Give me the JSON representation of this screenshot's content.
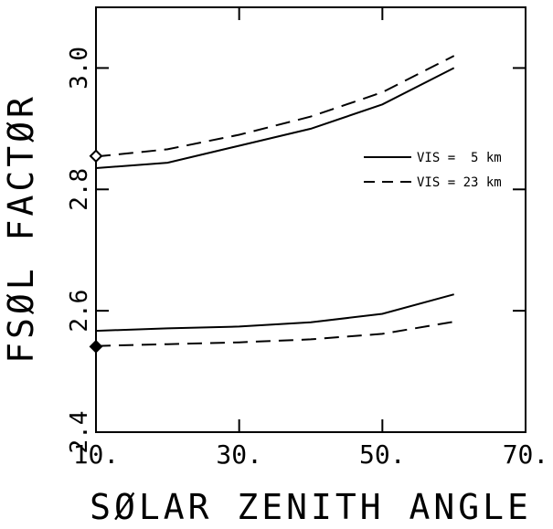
{
  "chart_data": {
    "type": "line",
    "xlabel": "SØLAR ZENITH ANGLE",
    "ylabel": "FSØL FACTØR",
    "xlim": [
      10,
      70
    ],
    "ylim": [
      2.4,
      3.1
    ],
    "x_ticks": [
      10,
      30,
      50,
      70
    ],
    "x_tick_labels": [
      "10.",
      "30.",
      "50.",
      "70."
    ],
    "y_ticks": [
      2.4,
      2.6,
      2.8,
      3.0
    ],
    "y_tick_labels": [
      "2.4",
      "2.6",
      "2.8",
      "3.0"
    ],
    "legend": {
      "placement": "right",
      "entries": [
        {
          "label": "VIS =  5 km",
          "style": "solid"
        },
        {
          "label": "VIS = 23 km",
          "style": "dashed"
        }
      ]
    },
    "series": [
      {
        "name": "VIS = 5 km",
        "style": "solid",
        "group": "upper",
        "x": [
          10,
          20,
          30,
          40,
          50,
          60
        ],
        "y": [
          2.835,
          2.844,
          2.872,
          2.9,
          2.94,
          3.0
        ]
      },
      {
        "name": "VIS = 23 km",
        "style": "dashed",
        "group": "upper",
        "x": [
          10,
          20,
          30,
          40,
          50,
          60
        ],
        "y": [
          2.854,
          2.866,
          2.89,
          2.92,
          2.96,
          3.02
        ]
      },
      {
        "name": "VIS = 5 km",
        "style": "solid",
        "group": "lower",
        "x": [
          10,
          20,
          30,
          40,
          50,
          60
        ],
        "y": [
          2.567,
          2.571,
          2.574,
          2.581,
          2.595,
          2.627
        ]
      },
      {
        "name": "VIS = 23 km",
        "style": "dashed",
        "group": "lower",
        "x": [
          10,
          20,
          30,
          40,
          50,
          60
        ],
        "y": [
          2.542,
          2.545,
          2.548,
          2.553,
          2.562,
          2.582
        ]
      }
    ],
    "markers": [
      {
        "x": 10,
        "y": 2.855,
        "shape": "diamond-open"
      },
      {
        "x": 10,
        "y": 2.541,
        "shape": "diamond-filled"
      }
    ],
    "grid": false
  }
}
